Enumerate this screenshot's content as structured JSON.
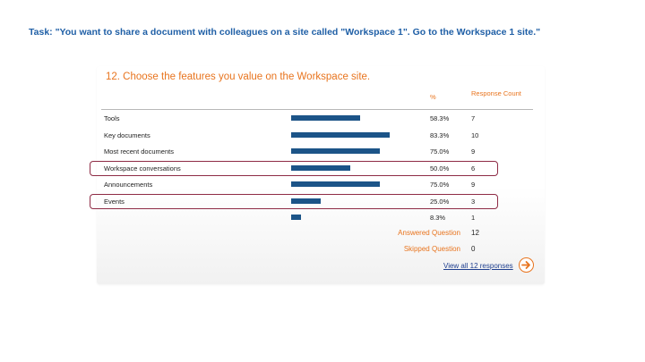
{
  "task": "Task: \"You want to share a document with colleagues on a site called \"Workspace 1\". Go to the Workspace 1 site.\"",
  "colors": {
    "accent": "#e8741e",
    "bar": "#1c5488",
    "highlight": "#8e2b45",
    "task": "#1f5fa6"
  },
  "chart_data": {
    "type": "bar",
    "title": "12. Choose the features you value on the Workspace site.",
    "headers": {
      "percent": "%",
      "count": "Response Count"
    },
    "categories": [
      "Tools",
      "Key documents",
      "Most recent documents",
      "Workspace conversations",
      "Announcements",
      "Events",
      ""
    ],
    "values": [
      58.3,
      83.3,
      75.0,
      50.0,
      75.0,
      25.0,
      8.3
    ],
    "percent_labels": [
      "58.3%",
      "83.3%",
      "75.0%",
      "50.0%",
      "75.0%",
      "25.0%",
      "8.3%"
    ],
    "counts": [
      "7",
      "10",
      "9",
      "6",
      "9",
      "3",
      "1"
    ],
    "xlim": [
      0,
      100
    ],
    "highlighted": [
      "Workspace conversations",
      "Events"
    ]
  },
  "summary": {
    "answered_label": "Answered Question",
    "answered_value": "12",
    "skipped_label": "Skipped Question",
    "skipped_value": "0"
  },
  "view_all_label": "View all 12 responses",
  "icons": {
    "next": "arrow-right-icon"
  }
}
